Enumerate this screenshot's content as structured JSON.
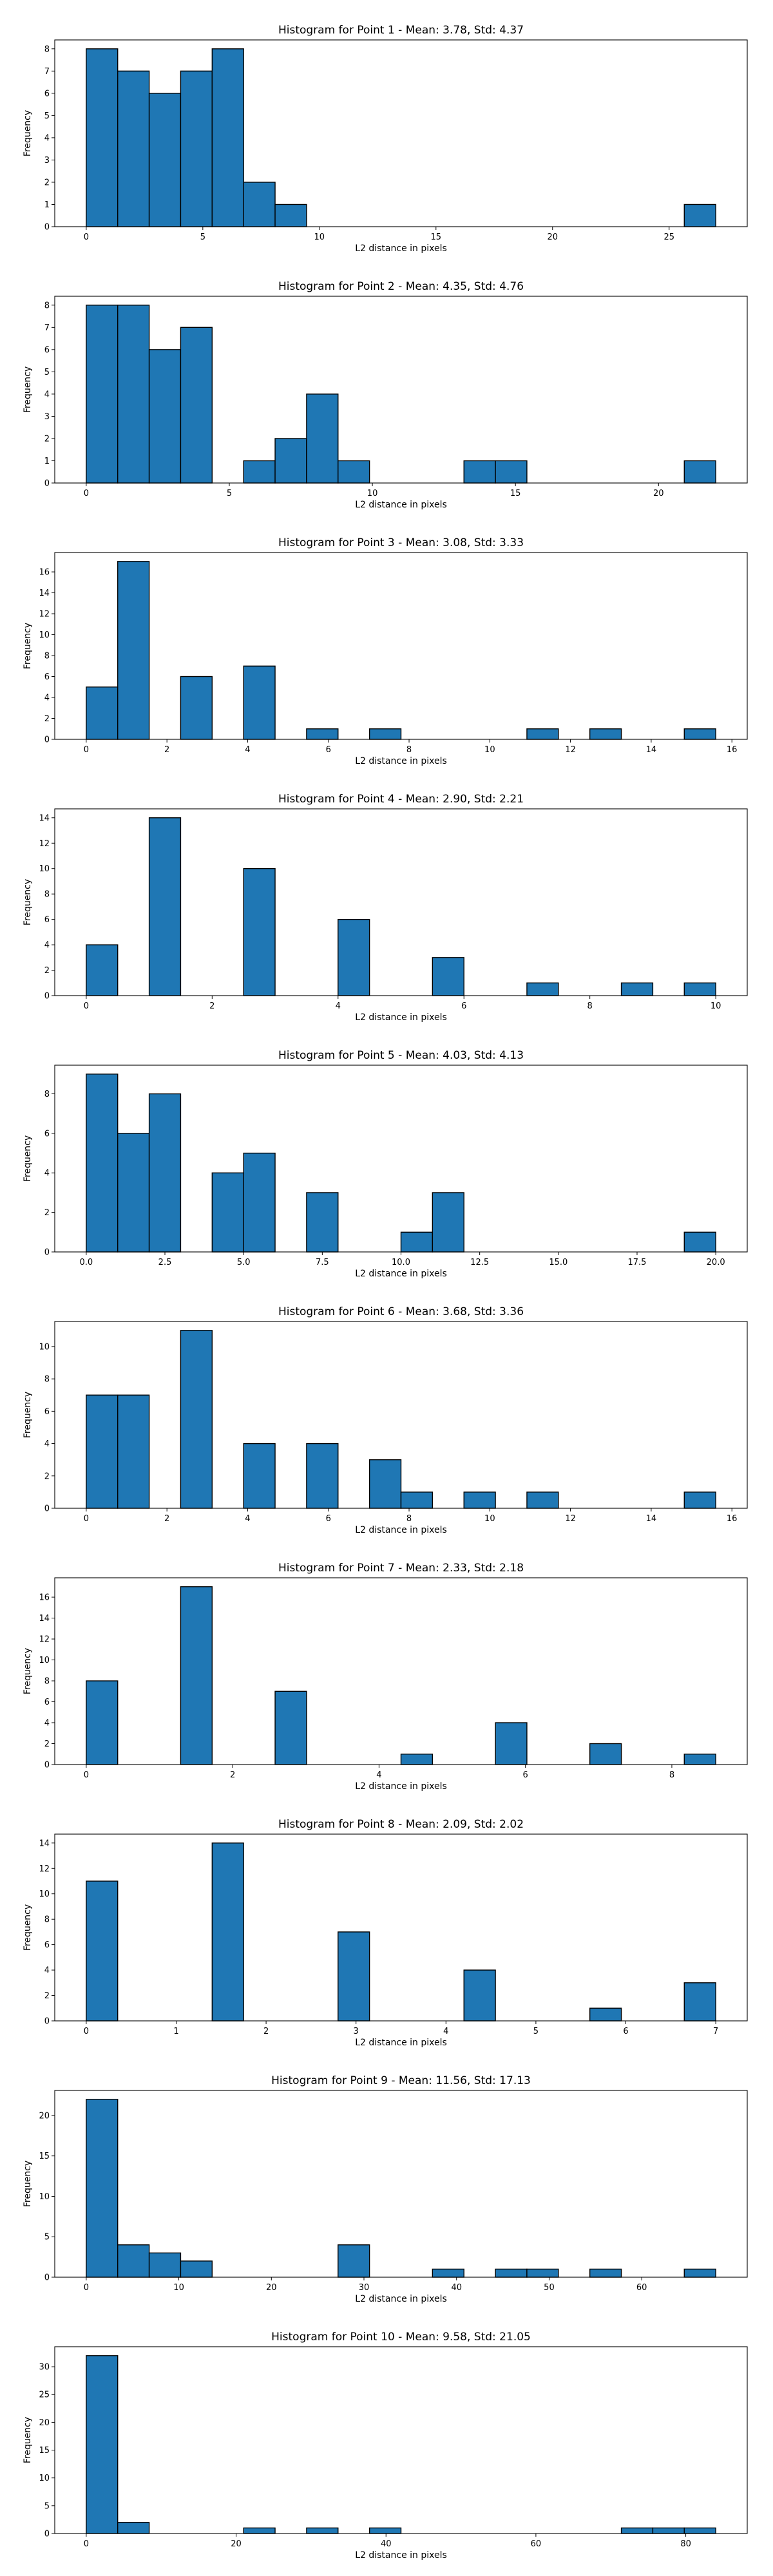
{
  "chart_data": [
    {
      "type": "bar",
      "title": "Histogram for Point 1 - Mean: 3.78, Std: 4.37",
      "xlabel": "L2 distance in pixels",
      "ylabel": "Frequency",
      "xlim": [
        -1.35,
        28.35
      ],
      "ylim": [
        0,
        8.4
      ],
      "xticks": [
        0,
        5,
        10,
        15,
        20,
        25
      ],
      "xtick_labels": [
        "0",
        "5",
        "10",
        "15",
        "20",
        "25"
      ],
      "yticks": [
        0,
        1,
        2,
        3,
        4,
        5,
        6,
        7,
        8
      ],
      "ytick_labels": [
        "0",
        "1",
        "2",
        "3",
        "4",
        "5",
        "6",
        "7",
        "8"
      ],
      "bins": [
        {
          "start": 0.0,
          "end": 1.35,
          "count": 8
        },
        {
          "start": 1.35,
          "end": 2.7,
          "count": 7
        },
        {
          "start": 2.7,
          "end": 4.05,
          "count": 6
        },
        {
          "start": 4.05,
          "end": 5.4,
          "count": 7
        },
        {
          "start": 5.4,
          "end": 6.75,
          "count": 8
        },
        {
          "start": 6.75,
          "end": 8.1,
          "count": 2
        },
        {
          "start": 8.1,
          "end": 9.45,
          "count": 1
        },
        {
          "start": 25.65,
          "end": 27.0,
          "count": 1
        }
      ],
      "color": "#1f77b4"
    },
    {
      "type": "bar",
      "title": "Histogram for Point 2 - Mean: 4.35, Std: 4.76",
      "xlabel": "L2 distance in pixels",
      "ylabel": "Frequency",
      "xlim": [
        -1.1,
        23.1
      ],
      "ylim": [
        0,
        8.4
      ],
      "xticks": [
        0,
        5,
        10,
        15,
        20
      ],
      "xtick_labels": [
        "0",
        "5",
        "10",
        "15",
        "20"
      ],
      "yticks": [
        0,
        1,
        2,
        3,
        4,
        5,
        6,
        7,
        8
      ],
      "ytick_labels": [
        "0",
        "1",
        "2",
        "3",
        "4",
        "5",
        "6",
        "7",
        "8"
      ],
      "bins": [
        {
          "start": 0.0,
          "end": 1.1,
          "count": 8
        },
        {
          "start": 1.1,
          "end": 2.2,
          "count": 8
        },
        {
          "start": 2.2,
          "end": 3.3,
          "count": 6
        },
        {
          "start": 3.3,
          "end": 4.4,
          "count": 7
        },
        {
          "start": 5.5,
          "end": 6.6,
          "count": 1
        },
        {
          "start": 6.6,
          "end": 7.7,
          "count": 2
        },
        {
          "start": 7.7,
          "end": 8.8,
          "count": 4
        },
        {
          "start": 8.8,
          "end": 9.9,
          "count": 1
        },
        {
          "start": 13.2,
          "end": 14.3,
          "count": 1
        },
        {
          "start": 14.3,
          "end": 15.4,
          "count": 1
        },
        {
          "start": 20.9,
          "end": 22.0,
          "count": 1
        }
      ],
      "color": "#1f77b4"
    },
    {
      "type": "bar",
      "title": "Histogram for Point 3 - Mean: 3.08, Std: 3.33",
      "xlabel": "L2 distance in pixels",
      "ylabel": "Frequency",
      "xlim": [
        -0.78,
        16.38
      ],
      "ylim": [
        0,
        17.85
      ],
      "xticks": [
        0,
        2,
        4,
        6,
        8,
        10,
        12,
        14,
        16
      ],
      "xtick_labels": [
        "0",
        "2",
        "4",
        "6",
        "8",
        "10",
        "12",
        "14",
        "16"
      ],
      "yticks": [
        0,
        2,
        4,
        6,
        8,
        10,
        12,
        14,
        16
      ],
      "ytick_labels": [
        "0",
        "2",
        "4",
        "6",
        "8",
        "10",
        "12",
        "14",
        "16"
      ],
      "bins": [
        {
          "start": 0.0,
          "end": 0.78,
          "count": 5
        },
        {
          "start": 0.78,
          "end": 1.56,
          "count": 17
        },
        {
          "start": 2.34,
          "end": 3.12,
          "count": 6
        },
        {
          "start": 3.9,
          "end": 4.68,
          "count": 7
        },
        {
          "start": 5.46,
          "end": 6.24,
          "count": 1
        },
        {
          "start": 7.02,
          "end": 7.8,
          "count": 1
        },
        {
          "start": 10.92,
          "end": 11.7,
          "count": 1
        },
        {
          "start": 12.48,
          "end": 13.26,
          "count": 1
        },
        {
          "start": 14.82,
          "end": 15.6,
          "count": 1
        }
      ],
      "color": "#1f77b4"
    },
    {
      "type": "bar",
      "title": "Histogram for Point 4 - Mean: 2.90, Std: 2.21",
      "xlabel": "L2 distance in pixels",
      "ylabel": "Frequency",
      "xlim": [
        -0.5,
        10.5
      ],
      "ylim": [
        0,
        14.7
      ],
      "xticks": [
        0,
        2,
        4,
        6,
        8,
        10
      ],
      "xtick_labels": [
        "0",
        "2",
        "4",
        "6",
        "8",
        "10"
      ],
      "yticks": [
        0,
        2,
        4,
        6,
        8,
        10,
        12,
        14
      ],
      "ytick_labels": [
        "0",
        "2",
        "4",
        "6",
        "8",
        "10",
        "12",
        "14"
      ],
      "bins": [
        {
          "start": 0.0,
          "end": 0.5,
          "count": 4
        },
        {
          "start": 1.0,
          "end": 1.5,
          "count": 14
        },
        {
          "start": 2.5,
          "end": 3.0,
          "count": 10
        },
        {
          "start": 4.0,
          "end": 4.5,
          "count": 6
        },
        {
          "start": 5.5,
          "end": 6.0,
          "count": 3
        },
        {
          "start": 7.0,
          "end": 7.5,
          "count": 1
        },
        {
          "start": 8.5,
          "end": 9.0,
          "count": 1
        },
        {
          "start": 9.5,
          "end": 10.0,
          "count": 1
        }
      ],
      "color": "#1f77b4"
    },
    {
      "type": "bar",
      "title": "Histogram for Point 5 - Mean: 4.03, Std: 4.13",
      "xlabel": "L2 distance in pixels",
      "ylabel": "Frequency",
      "xlim": [
        -1.0,
        21.0
      ],
      "ylim": [
        0,
        9.45
      ],
      "xticks": [
        0,
        2.5,
        5,
        7.5,
        10,
        12.5,
        15,
        17.5,
        20
      ],
      "xtick_labels": [
        "0.0",
        "2.5",
        "5.0",
        "7.5",
        "10.0",
        "12.5",
        "15.0",
        "17.5",
        "20.0"
      ],
      "yticks": [
        0,
        2,
        4,
        6,
        8
      ],
      "ytick_labels": [
        "0",
        "2",
        "4",
        "6",
        "8"
      ],
      "bins": [
        {
          "start": 0.0,
          "end": 1.0,
          "count": 9
        },
        {
          "start": 1.0,
          "end": 2.0,
          "count": 6
        },
        {
          "start": 2.0,
          "end": 3.0,
          "count": 8
        },
        {
          "start": 4.0,
          "end": 5.0,
          "count": 4
        },
        {
          "start": 5.0,
          "end": 6.0,
          "count": 5
        },
        {
          "start": 7.0,
          "end": 8.0,
          "count": 3
        },
        {
          "start": 10.0,
          "end": 11.0,
          "count": 1
        },
        {
          "start": 11.0,
          "end": 12.0,
          "count": 3
        },
        {
          "start": 19.0,
          "end": 20.0,
          "count": 1
        }
      ],
      "color": "#1f77b4"
    },
    {
      "type": "bar",
      "title": "Histogram for Point 6 - Mean: 3.68, Std: 3.36",
      "xlabel": "L2 distance in pixels",
      "ylabel": "Frequency",
      "xlim": [
        -0.78,
        16.38
      ],
      "ylim": [
        0,
        11.55
      ],
      "xticks": [
        0,
        2,
        4,
        6,
        8,
        10,
        12,
        14,
        16
      ],
      "xtick_labels": [
        "0",
        "2",
        "4",
        "6",
        "8",
        "10",
        "12",
        "14",
        "16"
      ],
      "yticks": [
        0,
        2,
        4,
        6,
        8,
        10
      ],
      "ytick_labels": [
        "0",
        "2",
        "4",
        "6",
        "8",
        "10"
      ],
      "bins": [
        {
          "start": 0.0,
          "end": 0.78,
          "count": 7
        },
        {
          "start": 0.78,
          "end": 1.56,
          "count": 7
        },
        {
          "start": 2.34,
          "end": 3.12,
          "count": 11
        },
        {
          "start": 3.9,
          "end": 4.68,
          "count": 4
        },
        {
          "start": 5.46,
          "end": 6.24,
          "count": 4
        },
        {
          "start": 7.02,
          "end": 7.8,
          "count": 3
        },
        {
          "start": 7.8,
          "end": 8.58,
          "count": 1
        },
        {
          "start": 9.36,
          "end": 10.14,
          "count": 1
        },
        {
          "start": 10.92,
          "end": 11.7,
          "count": 1
        },
        {
          "start": 14.82,
          "end": 15.6,
          "count": 1
        }
      ],
      "color": "#1f77b4"
    },
    {
      "type": "bar",
      "title": "Histogram for Point 7 - Mean: 2.33, Std: 2.18",
      "xlabel": "L2 distance in pixels",
      "ylabel": "Frequency",
      "xlim": [
        -0.43,
        9.03
      ],
      "ylim": [
        0,
        17.85
      ],
      "xticks": [
        0,
        2,
        4,
        6,
        8
      ],
      "xtick_labels": [
        "0",
        "2",
        "4",
        "6",
        "8"
      ],
      "yticks": [
        0,
        2,
        4,
        6,
        8,
        10,
        12,
        14,
        16
      ],
      "ytick_labels": [
        "0",
        "2",
        "4",
        "6",
        "8",
        "10",
        "12",
        "14",
        "16"
      ],
      "bins": [
        {
          "start": 0.0,
          "end": 0.43,
          "count": 8
        },
        {
          "start": 1.29,
          "end": 1.72,
          "count": 17
        },
        {
          "start": 2.58,
          "end": 3.01,
          "count": 7
        },
        {
          "start": 4.3,
          "end": 4.73,
          "count": 1
        },
        {
          "start": 5.59,
          "end": 6.02,
          "count": 4
        },
        {
          "start": 6.88,
          "end": 7.31,
          "count": 2
        },
        {
          "start": 8.17,
          "end": 8.6,
          "count": 1
        }
      ],
      "color": "#1f77b4"
    },
    {
      "type": "bar",
      "title": "Histogram for Point 8 - Mean: 2.09, Std: 2.02",
      "xlabel": "L2 distance in pixels",
      "ylabel": "Frequency",
      "xlim": [
        -0.35,
        7.35
      ],
      "ylim": [
        0,
        14.7
      ],
      "xticks": [
        0,
        1,
        2,
        3,
        4,
        5,
        6,
        7
      ],
      "xtick_labels": [
        "0",
        "1",
        "2",
        "3",
        "4",
        "5",
        "6",
        "7"
      ],
      "yticks": [
        0,
        2,
        4,
        6,
        8,
        10,
        12,
        14
      ],
      "ytick_labels": [
        "0",
        "2",
        "4",
        "6",
        "8",
        "10",
        "12",
        "14"
      ],
      "bins": [
        {
          "start": 0.0,
          "end": 0.35,
          "count": 11
        },
        {
          "start": 1.4,
          "end": 1.75,
          "count": 14
        },
        {
          "start": 2.8,
          "end": 3.15,
          "count": 7
        },
        {
          "start": 4.2,
          "end": 4.55,
          "count": 4
        },
        {
          "start": 5.6,
          "end": 5.95,
          "count": 1
        },
        {
          "start": 6.65,
          "end": 7.0,
          "count": 3
        }
      ],
      "color": "#1f77b4"
    },
    {
      "type": "bar",
      "title": "Histogram for Point 9 - Mean: 11.56, Std: 17.13",
      "xlabel": "L2 distance in pixels",
      "ylabel": "Frequency",
      "xlim": [
        -3.4,
        71.4
      ],
      "ylim": [
        0,
        23.1
      ],
      "xticks": [
        0,
        10,
        20,
        30,
        40,
        50,
        60
      ],
      "xtick_labels": [
        "0",
        "10",
        "20",
        "30",
        "40",
        "50",
        "60"
      ],
      "yticks": [
        0,
        5,
        10,
        15,
        20
      ],
      "ytick_labels": [
        "0",
        "5",
        "10",
        "15",
        "20"
      ],
      "bins": [
        {
          "start": 0.0,
          "end": 3.4,
          "count": 22
        },
        {
          "start": 3.4,
          "end": 6.8,
          "count": 4
        },
        {
          "start": 6.8,
          "end": 10.2,
          "count": 3
        },
        {
          "start": 10.2,
          "end": 13.6,
          "count": 2
        },
        {
          "start": 27.2,
          "end": 30.6,
          "count": 4
        },
        {
          "start": 37.4,
          "end": 40.8,
          "count": 1
        },
        {
          "start": 44.2,
          "end": 47.6,
          "count": 1
        },
        {
          "start": 47.6,
          "end": 51.0,
          "count": 1
        },
        {
          "start": 54.4,
          "end": 57.8,
          "count": 1
        },
        {
          "start": 64.6,
          "end": 68.0,
          "count": 1
        }
      ],
      "color": "#1f77b4"
    },
    {
      "type": "bar",
      "title": "Histogram for Point 10 - Mean: 9.58, Std: 21.05",
      "xlabel": "L2 distance in pixels",
      "ylabel": "Frequency",
      "xlim": [
        -4.2,
        88.2
      ],
      "ylim": [
        0,
        33.6
      ],
      "xticks": [
        0,
        20,
        40,
        60,
        80
      ],
      "xtick_labels": [
        "0",
        "20",
        "40",
        "60",
        "80"
      ],
      "yticks": [
        0,
        5,
        10,
        15,
        20,
        25,
        30
      ],
      "ytick_labels": [
        "0",
        "5",
        "10",
        "15",
        "20",
        "25",
        "30"
      ],
      "bins": [
        {
          "start": 0.0,
          "end": 4.2,
          "count": 32
        },
        {
          "start": 4.2,
          "end": 8.4,
          "count": 2
        },
        {
          "start": 21.0,
          "end": 25.2,
          "count": 1
        },
        {
          "start": 29.4,
          "end": 33.6,
          "count": 1
        },
        {
          "start": 37.8,
          "end": 42.0,
          "count": 1
        },
        {
          "start": 71.4,
          "end": 75.6,
          "count": 1
        },
        {
          "start": 75.6,
          "end": 79.8,
          "count": 1
        },
        {
          "start": 79.8,
          "end": 84.0,
          "count": 1
        }
      ],
      "color": "#1f77b4"
    }
  ]
}
